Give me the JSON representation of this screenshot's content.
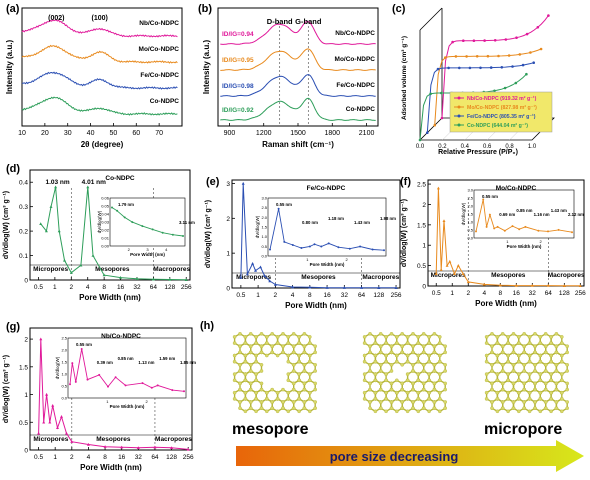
{
  "colors": {
    "nb": "#e0199a",
    "mo": "#e88a1e",
    "fe": "#2b4fb3",
    "co": "#2e9e5a",
    "atom": "#d8d86a",
    "bond": "#b5b53c",
    "arrow_start": "#e8650a",
    "arrow_end": "#d7e81b"
  },
  "chart_data": [
    {
      "panel": "(a)",
      "type": "line",
      "xlabel": "2θ (degree)",
      "ylabel": "Intensity (a.u.)",
      "xlim": [
        10,
        80
      ],
      "xticks": [
        10,
        20,
        30,
        40,
        50,
        60,
        70
      ],
      "peak_labels": [
        {
          "text": "(002)",
          "x": 25
        },
        {
          "text": "(100)",
          "x": 44
        }
      ],
      "series": [
        {
          "name": "Nb/Co-NDPC",
          "color": "nb",
          "peaks": [
            [
              24,
              0.9,
              6
            ],
            [
              44,
              0.45,
              4
            ]
          ]
        },
        {
          "name": "Mo/Co-NDPC",
          "color": "mo",
          "peaks": [
            [
              24,
              0.9,
              6
            ],
            [
              44,
              0.6,
              4
            ]
          ]
        },
        {
          "name": "Fe/Co-NDPC",
          "color": "fe",
          "peaks": [
            [
              24,
              0.9,
              6
            ],
            [
              44,
              0.5,
              4
            ]
          ]
        },
        {
          "name": "Co-NDPC",
          "color": "co",
          "peaks": [
            [
              24,
              0.95,
              6
            ],
            [
              44,
              0.35,
              4
            ]
          ]
        }
      ]
    },
    {
      "panel": "(b)",
      "type": "line",
      "xlabel": "Raman shift (cm⁻¹)",
      "ylabel": "Intensity (a.u.)",
      "xlim": [
        800,
        2200
      ],
      "xticks": [
        900,
        1200,
        1500,
        1800,
        2100
      ],
      "band_labels": [
        {
          "text": "D-band",
          "x": 1340
        },
        {
          "text": "G-band",
          "x": 1590
        }
      ],
      "series": [
        {
          "name": "Nb/Co-NDPC",
          "color": "nb",
          "ratio_label": "ID/IG=0.94",
          "d": 1.0,
          "g": 1.06
        },
        {
          "name": "Mo/Co-NDPC",
          "color": "mo",
          "ratio_label": "ID/IG=0.95",
          "d": 0.95,
          "g": 1.0
        },
        {
          "name": "Fe/Co-NDPC",
          "color": "fe",
          "ratio_label": "ID/IG=0.98",
          "d": 0.98,
          "g": 1.0
        },
        {
          "name": "Co-NDPC",
          "color": "co",
          "ratio_label": "ID/IG=0.92",
          "d": 0.92,
          "g": 1.0
        }
      ]
    },
    {
      "panel": "(c)",
      "type": "line",
      "xlabel": "Relative Pressure (P/P₀)",
      "ylabel": "Adsorbed volume (cm³ g⁻¹)",
      "xlim": [
        0,
        1.0
      ],
      "xticks": [
        0.0,
        0.2,
        0.4,
        0.6,
        0.8,
        1.0
      ],
      "series": [
        {
          "name": "Nb/Co-NDPC (919.32 m² g⁻¹)",
          "color": "nb",
          "plateau": 0.74,
          "rise": 0.24
        },
        {
          "name": "Mo/Co-NDPC (827.98 m² g⁻¹)",
          "color": "mo",
          "plateau": 0.66,
          "rise": 0.07
        },
        {
          "name": "Fe/Co-NDPC (805.35 m² g⁻¹)",
          "color": "fe",
          "plateau": 0.62,
          "rise": 0.05
        },
        {
          "name": "Co-NDPC (644.04 m² g⁻¹)",
          "color": "co",
          "plateau": 0.45,
          "rise": 0.18
        }
      ]
    },
    {
      "panel": "(d)",
      "type": "line",
      "title": "Co-NDPC",
      "xlabel": "Pore Width (nm)",
      "ylabel": "dV/dlog(W) (cm³ g⁻¹)",
      "color": "co",
      "ylim": [
        0,
        0.45
      ],
      "yticks": [
        0.0,
        0.1,
        0.2,
        0.3,
        0.4
      ],
      "xticks": [
        "0.5",
        "1",
        "2",
        "4",
        "8",
        "16",
        "32",
        "64",
        "128",
        "256"
      ],
      "regions": [
        "Micropores",
        "Mesopores",
        "Macropores"
      ],
      "annotations": [
        "1.03 nm",
        "4.01 nm"
      ],
      "points": [
        [
          0.55,
          0.23
        ],
        [
          0.7,
          0.2
        ],
        [
          0.85,
          0.3
        ],
        [
          1.03,
          0.38
        ],
        [
          1.2,
          0.2
        ],
        [
          1.5,
          0.08
        ],
        [
          2.0,
          0.03
        ],
        [
          3.0,
          0.06
        ],
        [
          4.01,
          0.38
        ],
        [
          5,
          0.1
        ],
        [
          8,
          0.02
        ],
        [
          16,
          0.01
        ],
        [
          32,
          0.005
        ],
        [
          64,
          0.003
        ],
        [
          128,
          0.002
        ],
        [
          256,
          0.001
        ]
      ],
      "inset": {
        "ylabel": "dV/dlog(W)",
        "xlabel": "Pore Width (nm)",
        "yticks": [
          "0.00",
          "0.01",
          "0.02",
          "0.03",
          "0.04",
          "0.05",
          "0.06"
        ],
        "xticks": [
          "2",
          "3",
          "4"
        ],
        "annotations": [
          "1.79 nm",
          "3.11 nm"
        ],
        "points": [
          [
            1.8,
            0.055
          ],
          [
            2.0,
            0.05
          ],
          [
            2.3,
            0.04
          ],
          [
            2.6,
            0.033
          ],
          [
            3.0,
            0.027
          ],
          [
            3.4,
            0.022
          ],
          [
            3.8,
            0.017
          ],
          [
            4.2,
            0.014
          ],
          [
            4.6,
            0.012
          ]
        ]
      }
    },
    {
      "panel": "(e)",
      "type": "line",
      "title": "Fe/Co-NDPC",
      "xlabel": "Pore Width (nm)",
      "ylabel": "dV/dlog(W) (cm³ g⁻¹)",
      "color": "fe",
      "ylim": [
        0,
        3.1
      ],
      "yticks": [
        0,
        1,
        2,
        3
      ],
      "xticks": [
        "0.5",
        "1",
        "2",
        "4",
        "8",
        "16",
        "32",
        "64",
        "128",
        "256"
      ],
      "regions": [
        "Micropores",
        "Mesopores",
        "Macropores"
      ],
      "points": [
        [
          0.5,
          0.3
        ],
        [
          0.55,
          3.0
        ],
        [
          0.65,
          0.4
        ],
        [
          0.8,
          0.7
        ],
        [
          0.9,
          0.5
        ],
        [
          1.1,
          0.6
        ],
        [
          1.3,
          0.35
        ],
        [
          1.6,
          0.2
        ],
        [
          2.0,
          0.1
        ],
        [
          4,
          0.03
        ],
        [
          8,
          0.02
        ],
        [
          16,
          0.01
        ],
        [
          32,
          0.01
        ],
        [
          64,
          0.01
        ],
        [
          128,
          0.005
        ],
        [
          256,
          0.005
        ]
      ],
      "inset": {
        "ylabel": "dV/dlog(W)",
        "xlabel": "Pore Width (nm)",
        "yticks": [
          "0.0",
          "0.5",
          "1.0",
          "1.5",
          "2.0",
          "2.5",
          "3.0"
        ],
        "xticks": [
          "1",
          "2"
        ],
        "annotations": [
          "0.55 nm",
          "0.80 nm",
          "1.18 nm",
          "1.43 nm",
          "1.98 nm"
        ],
        "points": [
          [
            0.4,
            0.3
          ],
          [
            0.55,
            3.0
          ],
          [
            0.65,
            0.8
          ],
          [
            0.8,
            0.6
          ],
          [
            0.95,
            0.4
          ],
          [
            1.1,
            0.5
          ],
          [
            1.18,
            0.65
          ],
          [
            1.3,
            0.5
          ],
          [
            1.43,
            0.7
          ],
          [
            1.6,
            0.45
          ],
          [
            1.8,
            0.35
          ],
          [
            1.98,
            0.5
          ],
          [
            2.2,
            0.3
          ],
          [
            2.4,
            0.25
          ]
        ]
      }
    },
    {
      "panel": "(f)",
      "type": "line",
      "title": "Mo/Co-NDPC",
      "xlabel": "Pore Width (nm)",
      "ylabel": "dV/dlog(W) (cm³ g⁻¹)",
      "color": "mo",
      "ylim": [
        0,
        2.6
      ],
      "yticks": [
        0.0,
        0.5,
        1.0,
        1.5,
        2.0,
        2.5
      ],
      "xticks": [
        "0.5",
        "1",
        "2",
        "4",
        "8",
        "16",
        "32",
        "64",
        "128",
        "256"
      ],
      "regions": [
        "Micropores",
        "Mesopores",
        "Macropores"
      ],
      "points": [
        [
          0.5,
          0.3
        ],
        [
          0.55,
          2.4
        ],
        [
          0.62,
          0.4
        ],
        [
          0.7,
          1.6
        ],
        [
          0.8,
          0.5
        ],
        [
          0.9,
          0.6
        ],
        [
          1.1,
          0.3
        ],
        [
          1.3,
          0.5
        ],
        [
          1.6,
          0.3
        ],
        [
          2.0,
          0.1
        ],
        [
          4,
          0.04
        ],
        [
          8,
          0.02
        ],
        [
          16,
          0.01
        ],
        [
          32,
          0.01
        ],
        [
          64,
          0.01
        ],
        [
          128,
          0.005
        ],
        [
          256,
          0.005
        ]
      ],
      "inset": {
        "ylabel": "dV/dlog(W)",
        "xlabel": "Pore Width (nm)",
        "yticks": [
          "0.0",
          "0.5",
          "1.0",
          "1.5",
          "2.0",
          "2.5",
          "3.0"
        ],
        "xticks": [
          "1",
          "2"
        ],
        "annotations": [
          "0.55 nm",
          "0.69 nm",
          "0.85 nm",
          "1.16 nm",
          "1.43 nm",
          "2.12 nm"
        ],
        "points": [
          [
            0.4,
            0.3
          ],
          [
            0.55,
            2.4
          ],
          [
            0.62,
            0.6
          ],
          [
            0.69,
            1.4
          ],
          [
            0.78,
            0.5
          ],
          [
            0.85,
            0.6
          ],
          [
            1.0,
            0.35
          ],
          [
            1.16,
            0.65
          ],
          [
            1.3,
            0.45
          ],
          [
            1.43,
            0.6
          ],
          [
            1.7,
            0.35
          ],
          [
            1.9,
            0.3
          ],
          [
            2.12,
            0.4
          ],
          [
            2.4,
            0.25
          ]
        ]
      }
    },
    {
      "panel": "(g)",
      "type": "line",
      "title": "Nb/Co-NDPC",
      "xlabel": "Pore Width (nm)",
      "ylabel": "dV/dlog(W) (cm³ g⁻¹)",
      "color": "nb",
      "ylim": [
        0,
        2.2
      ],
      "yticks": [
        0.0,
        0.5,
        1.0,
        1.5,
        2.0
      ],
      "xticks": [
        "0.5",
        "1",
        "2",
        "4",
        "8",
        "16",
        "32",
        "64",
        "128",
        "256"
      ],
      "regions": [
        "Micropores",
        "Mesopores",
        "Macropores"
      ],
      "points": [
        [
          0.5,
          0.3
        ],
        [
          0.55,
          2.0
        ],
        [
          0.62,
          0.5
        ],
        [
          0.7,
          1.0
        ],
        [
          0.8,
          0.5
        ],
        [
          0.9,
          0.8
        ],
        [
          1.1,
          0.4
        ],
        [
          1.3,
          0.6
        ],
        [
          1.6,
          0.3
        ],
        [
          2.0,
          0.15
        ],
        [
          4,
          0.1
        ],
        [
          8,
          0.06
        ],
        [
          16,
          0.05
        ],
        [
          32,
          0.04
        ],
        [
          64,
          0.05
        ],
        [
          128,
          0.04
        ],
        [
          256,
          0.01
        ]
      ],
      "inset": {
        "ylabel": "dV/dlog(W)",
        "xlabel": "Pore Width (nm)",
        "yticks": [
          "0.0",
          "0.5",
          "1.0",
          "1.5",
          "2.0",
          "2.5"
        ],
        "xticks": [
          "1",
          "2"
        ],
        "annotations": [
          "0.55 nm",
          "0.39 nm",
          "0.85 nm",
          "1.13 nm",
          "1.59 nm",
          "1.85 nm"
        ],
        "points": [
          [
            0.35,
            0.5
          ],
          [
            0.39,
            1.4
          ],
          [
            0.45,
            0.6
          ],
          [
            0.55,
            2.0
          ],
          [
            0.65,
            0.7
          ],
          [
            0.85,
            0.9
          ],
          [
            1.0,
            0.4
          ],
          [
            1.13,
            0.8
          ],
          [
            1.3,
            0.45
          ],
          [
            1.59,
            0.55
          ],
          [
            1.75,
            0.35
          ],
          [
            1.85,
            0.45
          ],
          [
            2.1,
            0.25
          ],
          [
            2.3,
            0.2
          ]
        ]
      }
    }
  ],
  "panel_h": {
    "panel": "(h)",
    "label_mesopore": "mesopore",
    "label_micropore": "micropore",
    "arrow_text": "pore size decreasing"
  }
}
